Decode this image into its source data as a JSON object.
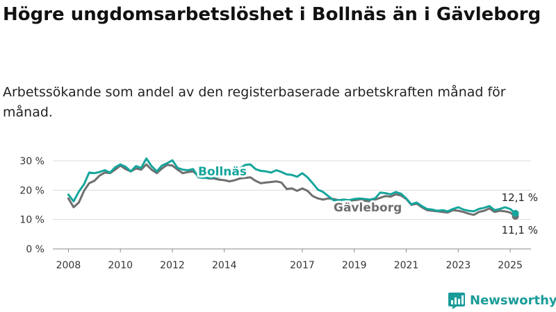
{
  "title": "Högre ungdomsarbetslöshet i Bollnäs än i Gävleborg",
  "subtitle": "Arbetssökande som andel av den registerbaserade arbetskraften månad för månad.",
  "brand": "Newsworthy",
  "colors": {
    "bollnas": "#16a59c",
    "gavleborg": "#6e6e6e",
    "brand": "#1a9c99",
    "grid": "#dddddd"
  },
  "chart_data": {
    "type": "line",
    "ylim": [
      0,
      30
    ],
    "y_ticks": [
      0,
      10,
      20,
      30
    ],
    "y_tick_labels": [
      "0 %",
      "10 %",
      "20 %",
      "30 %"
    ],
    "x_ticks": [
      2008,
      2010,
      2012,
      2014,
      2017,
      2019,
      2021,
      2023,
      2025
    ],
    "xlim": [
      2007.4,
      2025.8
    ],
    "grid": true,
    "series": [
      {
        "name": "Bollnäs",
        "color": "#16a59c",
        "end_label": "12,1 %",
        "x": [
          2008.0,
          2008.2,
          2008.4,
          2008.6,
          2008.8,
          2009.0,
          2009.2,
          2009.4,
          2009.6,
          2009.8,
          2010.0,
          2010.2,
          2010.4,
          2010.6,
          2010.8,
          2011.0,
          2011.2,
          2011.4,
          2011.6,
          2011.8,
          2012.0,
          2012.2,
          2012.4,
          2012.6,
          2012.8,
          2013.0,
          2013.2,
          2013.4,
          2013.6,
          2013.8,
          2014.0,
          2014.2,
          2014.4,
          2014.6,
          2014.8,
          2015.0,
          2015.2,
          2015.4,
          2015.6,
          2015.8,
          2016.0,
          2016.2,
          2016.4,
          2016.6,
          2016.8,
          2017.0,
          2017.2,
          2017.4,
          2017.6,
          2017.8,
          2018.0,
          2018.2,
          2018.4,
          2018.6,
          2018.8,
          2019.0,
          2019.2,
          2019.4,
          2019.6,
          2019.8,
          2020.0,
          2020.2,
          2020.4,
          2020.6,
          2020.8,
          2021.0,
          2021.2,
          2021.4,
          2021.6,
          2021.8,
          2022.0,
          2022.2,
          2022.4,
          2022.6,
          2022.8,
          2023.0,
          2023.2,
          2023.4,
          2023.6,
          2023.8,
          2024.0,
          2024.2,
          2024.4,
          2024.6,
          2024.8,
          2025.0,
          2025.2
        ],
        "values": [
          18.5,
          16.2,
          19.5,
          22.0,
          26.0,
          25.8,
          26.2,
          26.8,
          26.0,
          27.8,
          28.8,
          28.0,
          26.4,
          28.2,
          27.6,
          30.8,
          28.2,
          26.4,
          28.4,
          29.2,
          30.2,
          27.6,
          27.0,
          26.8,
          27.2,
          24.4,
          24.2,
          24.2,
          24.4,
          24.6,
          24.8,
          25.6,
          26.0,
          27.4,
          28.6,
          28.8,
          27.2,
          26.6,
          26.4,
          26.0,
          26.8,
          26.2,
          25.4,
          25.2,
          24.6,
          25.8,
          24.4,
          22.4,
          20.2,
          19.4,
          18.0,
          16.6,
          16.6,
          16.8,
          16.6,
          17.0,
          17.2,
          17.0,
          16.8,
          17.2,
          19.2,
          19.0,
          18.6,
          19.4,
          18.8,
          17.2,
          15.2,
          15.8,
          14.6,
          13.6,
          13.4,
          13.0,
          13.2,
          12.8,
          13.6,
          14.2,
          13.4,
          13.0,
          12.8,
          13.6,
          14.0,
          14.6,
          13.2,
          13.6,
          14.2,
          13.6,
          12.1
        ]
      },
      {
        "name": "Gävleborg",
        "color": "#6e6e6e",
        "end_label": "11,1 %",
        "x": [
          2008.0,
          2008.2,
          2008.4,
          2008.6,
          2008.8,
          2009.0,
          2009.2,
          2009.4,
          2009.6,
          2009.8,
          2010.0,
          2010.2,
          2010.4,
          2010.6,
          2010.8,
          2011.0,
          2011.2,
          2011.4,
          2011.6,
          2011.8,
          2012.0,
          2012.2,
          2012.4,
          2012.6,
          2012.8,
          2013.0,
          2013.2,
          2013.4,
          2013.6,
          2013.8,
          2014.0,
          2014.2,
          2014.4,
          2014.6,
          2014.8,
          2015.0,
          2015.2,
          2015.4,
          2015.6,
          2015.8,
          2016.0,
          2016.2,
          2016.4,
          2016.6,
          2016.8,
          2017.0,
          2017.2,
          2017.4,
          2017.6,
          2017.8,
          2018.0,
          2018.2,
          2018.4,
          2018.6,
          2018.8,
          2019.0,
          2019.2,
          2019.4,
          2019.6,
          2019.8,
          2020.0,
          2020.2,
          2020.4,
          2020.6,
          2020.8,
          2021.0,
          2021.2,
          2021.4,
          2021.6,
          2021.8,
          2022.0,
          2022.2,
          2022.4,
          2022.6,
          2022.8,
          2023.0,
          2023.2,
          2023.4,
          2023.6,
          2023.8,
          2024.0,
          2024.2,
          2024.4,
          2024.6,
          2024.8,
          2025.0,
          2025.2
        ],
        "values": [
          17.2,
          14.2,
          15.8,
          19.8,
          22.4,
          23.2,
          25.0,
          26.0,
          25.8,
          27.0,
          28.4,
          27.2,
          26.4,
          27.4,
          27.0,
          28.8,
          27.0,
          25.8,
          27.4,
          28.6,
          28.4,
          27.0,
          25.8,
          26.2,
          26.4,
          24.8,
          24.4,
          24.0,
          24.0,
          23.6,
          23.4,
          23.0,
          23.4,
          24.0,
          24.2,
          24.4,
          23.2,
          22.4,
          22.6,
          22.8,
          23.0,
          22.6,
          20.4,
          20.6,
          19.8,
          20.6,
          19.8,
          18.0,
          17.2,
          16.8,
          17.2,
          17.0,
          16.6,
          16.8,
          16.4,
          16.6,
          16.8,
          16.4,
          16.2,
          16.8,
          17.4,
          18.0,
          17.8,
          18.6,
          18.2,
          17.0,
          15.0,
          15.4,
          14.2,
          13.2,
          13.0,
          12.8,
          12.6,
          12.4,
          13.2,
          13.0,
          12.6,
          12.0,
          11.6,
          12.6,
          13.0,
          13.8,
          12.6,
          13.0,
          12.8,
          12.4,
          11.1
        ]
      }
    ]
  }
}
